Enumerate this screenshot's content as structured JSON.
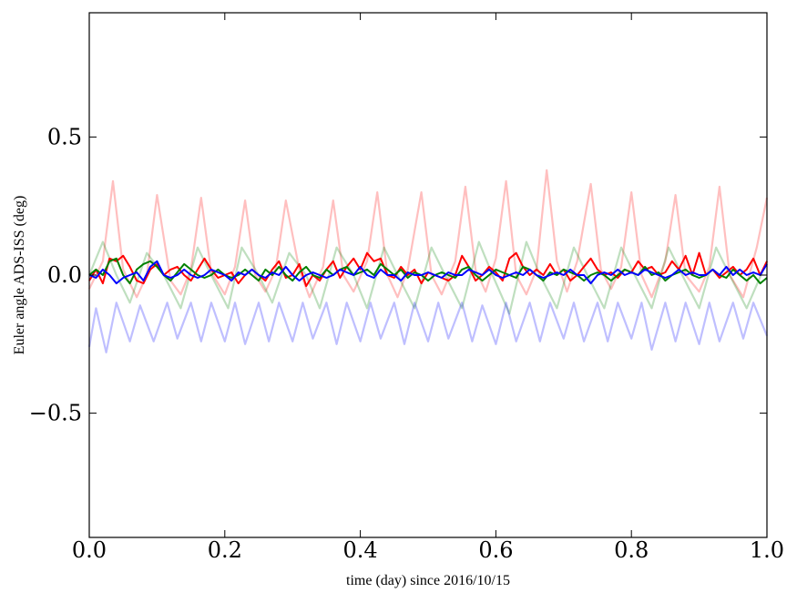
{
  "chart_data": {
    "type": "line",
    "title": "",
    "xlabel": "time (day) since 2016/10/15",
    "ylabel": "Euler angle ADS-ISS (deg)",
    "xlim": [
      0.0,
      1.0
    ],
    "ylim": [
      -0.95,
      0.95
    ],
    "xticks": [
      0.0,
      0.2,
      0.4,
      0.6,
      0.8,
      1.0
    ],
    "xtick_labels": [
      "0.0",
      "0.2",
      "0.4",
      "0.6",
      "0.8",
      "1.0"
    ],
    "yticks": [
      -0.5,
      0.0,
      0.5
    ],
    "ytick_labels": [
      "−0.5",
      "0.0",
      "0.5"
    ],
    "grid": false,
    "legend": "none",
    "series": [
      {
        "color": "#ff0000",
        "alpha": 0.25,
        "x": [
          0.0,
          0.02,
          0.035,
          0.05,
          0.07,
          0.085,
          0.1,
          0.12,
          0.135,
          0.15,
          0.165,
          0.18,
          0.2,
          0.215,
          0.23,
          0.245,
          0.26,
          0.275,
          0.29,
          0.31,
          0.325,
          0.345,
          0.36,
          0.375,
          0.39,
          0.41,
          0.425,
          0.44,
          0.455,
          0.47,
          0.49,
          0.505,
          0.52,
          0.54,
          0.555,
          0.57,
          0.585,
          0.6,
          0.615,
          0.63,
          0.645,
          0.66,
          0.675,
          0.69,
          0.705,
          0.72,
          0.74,
          0.755,
          0.77,
          0.785,
          0.8,
          0.815,
          0.83,
          0.85,
          0.865,
          0.88,
          0.9,
          0.915,
          0.93,
          0.945,
          0.965,
          0.985,
          1.0
        ],
        "y": [
          -0.05,
          0.05,
          0.34,
          0.02,
          -0.08,
          0.0,
          0.29,
          -0.02,
          -0.07,
          0.02,
          0.28,
          0.01,
          -0.07,
          0.03,
          0.27,
          0.0,
          -0.06,
          0.02,
          0.27,
          0.02,
          -0.08,
          0.03,
          0.27,
          0.0,
          -0.06,
          0.05,
          0.3,
          0.0,
          -0.08,
          0.02,
          0.3,
          0.0,
          -0.07,
          0.05,
          0.32,
          0.02,
          -0.06,
          0.06,
          0.34,
          0.0,
          -0.07,
          0.02,
          0.38,
          0.05,
          -0.06,
          0.05,
          0.33,
          0.02,
          -0.05,
          0.03,
          0.3,
          0.0,
          -0.08,
          0.05,
          0.29,
          0.0,
          -0.06,
          0.03,
          0.32,
          0.0,
          -0.08,
          0.1,
          0.28
        ]
      },
      {
        "color": "#008000",
        "alpha": 0.25,
        "x": [
          0.0,
          0.02,
          0.04,
          0.06,
          0.085,
          0.11,
          0.135,
          0.16,
          0.18,
          0.205,
          0.225,
          0.25,
          0.27,
          0.295,
          0.32,
          0.34,
          0.365,
          0.39,
          0.41,
          0.435,
          0.455,
          0.48,
          0.505,
          0.525,
          0.55,
          0.575,
          0.595,
          0.62,
          0.645,
          0.665,
          0.69,
          0.715,
          0.735,
          0.76,
          0.785,
          0.805,
          0.83,
          0.855,
          0.875,
          0.9,
          0.925,
          0.945,
          0.97,
          1.0
        ],
        "y": [
          0.0,
          0.12,
          0.0,
          -0.1,
          0.08,
          0.0,
          -0.12,
          0.1,
          0.0,
          -0.12,
          0.1,
          0.0,
          -0.1,
          0.08,
          0.0,
          -0.12,
          0.1,
          0.0,
          -0.12,
          0.1,
          0.0,
          -0.12,
          0.1,
          0.0,
          -0.12,
          0.12,
          0.0,
          -0.14,
          0.12,
          0.0,
          -0.12,
          0.1,
          0.0,
          -0.12,
          0.1,
          0.0,
          -0.12,
          0.1,
          0.0,
          -0.12,
          0.1,
          0.0,
          -0.12,
          0.05
        ]
      },
      {
        "color": "#0000ff",
        "alpha": 0.25,
        "x": [
          0.0,
          0.01,
          0.025,
          0.04,
          0.06,
          0.075,
          0.095,
          0.115,
          0.13,
          0.15,
          0.165,
          0.18,
          0.2,
          0.215,
          0.23,
          0.25,
          0.265,
          0.28,
          0.3,
          0.315,
          0.33,
          0.35,
          0.365,
          0.38,
          0.4,
          0.415,
          0.43,
          0.45,
          0.465,
          0.48,
          0.5,
          0.515,
          0.53,
          0.55,
          0.565,
          0.58,
          0.6,
          0.615,
          0.63,
          0.65,
          0.665,
          0.68,
          0.7,
          0.715,
          0.73,
          0.75,
          0.765,
          0.78,
          0.8,
          0.815,
          0.83,
          0.85,
          0.865,
          0.88,
          0.9,
          0.915,
          0.93,
          0.95,
          0.965,
          0.98,
          1.0
        ],
        "y": [
          -0.26,
          -0.12,
          -0.28,
          -0.1,
          -0.24,
          -0.11,
          -0.24,
          -0.1,
          -0.23,
          -0.1,
          -0.24,
          -0.1,
          -0.24,
          -0.1,
          -0.25,
          -0.1,
          -0.24,
          -0.1,
          -0.24,
          -0.1,
          -0.23,
          -0.1,
          -0.25,
          -0.1,
          -0.24,
          -0.1,
          -0.23,
          -0.1,
          -0.25,
          -0.1,
          -0.24,
          -0.1,
          -0.23,
          -0.1,
          -0.24,
          -0.11,
          -0.25,
          -0.1,
          -0.24,
          -0.1,
          -0.24,
          -0.1,
          -0.23,
          -0.1,
          -0.24,
          -0.1,
          -0.24,
          -0.1,
          -0.23,
          -0.1,
          -0.27,
          -0.1,
          -0.24,
          -0.1,
          -0.25,
          -0.1,
          -0.24,
          -0.1,
          -0.23,
          -0.1,
          -0.22
        ]
      },
      {
        "color": "#ff0000",
        "alpha": 1,
        "x": [
          0.0,
          0.01,
          0.02,
          0.03,
          0.04,
          0.05,
          0.06,
          0.07,
          0.08,
          0.09,
          0.1,
          0.11,
          0.12,
          0.13,
          0.14,
          0.15,
          0.16,
          0.17,
          0.18,
          0.19,
          0.2,
          0.21,
          0.22,
          0.23,
          0.24,
          0.25,
          0.26,
          0.27,
          0.28,
          0.29,
          0.3,
          0.31,
          0.32,
          0.33,
          0.34,
          0.35,
          0.36,
          0.37,
          0.38,
          0.39,
          0.4,
          0.41,
          0.42,
          0.43,
          0.44,
          0.45,
          0.46,
          0.47,
          0.48,
          0.49,
          0.5,
          0.51,
          0.52,
          0.53,
          0.54,
          0.55,
          0.56,
          0.57,
          0.58,
          0.59,
          0.6,
          0.61,
          0.62,
          0.63,
          0.64,
          0.65,
          0.66,
          0.67,
          0.68,
          0.69,
          0.7,
          0.71,
          0.72,
          0.73,
          0.74,
          0.75,
          0.76,
          0.77,
          0.78,
          0.79,
          0.8,
          0.81,
          0.82,
          0.83,
          0.84,
          0.85,
          0.86,
          0.87,
          0.88,
          0.89,
          0.9,
          0.91,
          0.92,
          0.93,
          0.94,
          0.95,
          0.96,
          0.97,
          0.98,
          0.99,
          1.0
        ],
        "y": [
          -0.02,
          0.02,
          -0.03,
          0.06,
          0.05,
          0.07,
          0.03,
          -0.02,
          -0.03,
          0.02,
          0.04,
          0.0,
          0.02,
          0.03,
          0.0,
          -0.02,
          0.02,
          0.06,
          0.02,
          -0.01,
          0.0,
          0.01,
          -0.03,
          0.0,
          0.02,
          0.0,
          -0.02,
          0.02,
          0.05,
          -0.01,
          0.0,
          0.04,
          -0.04,
          0.0,
          -0.02,
          0.02,
          0.05,
          -0.01,
          0.03,
          0.06,
          0.02,
          0.08,
          0.05,
          0.06,
          0.0,
          -0.01,
          0.03,
          0.0,
          0.02,
          -0.03,
          0.01,
          0.0,
          -0.01,
          -0.02,
          0.0,
          0.07,
          0.03,
          -0.02,
          0.0,
          0.03,
          0.01,
          -0.02,
          0.06,
          0.08,
          0.03,
          0.0,
          0.02,
          0.0,
          0.04,
          0.0,
          0.02,
          -0.02,
          0.0,
          0.03,
          0.06,
          0.02,
          0.0,
          0.01,
          -0.01,
          0.02,
          0.01,
          0.05,
          0.02,
          0.03,
          0.0,
          0.01,
          0.05,
          0.02,
          0.07,
          0.0,
          0.08,
          0.0,
          0.02,
          -0.01,
          0.01,
          0.03,
          0.0,
          0.02,
          0.06,
          0.0,
          0.05
        ]
      },
      {
        "color": "#008000",
        "alpha": 1,
        "x": [
          0.0,
          0.01,
          0.02,
          0.03,
          0.04,
          0.05,
          0.06,
          0.07,
          0.08,
          0.09,
          0.1,
          0.11,
          0.12,
          0.13,
          0.14,
          0.15,
          0.16,
          0.17,
          0.18,
          0.19,
          0.2,
          0.21,
          0.22,
          0.23,
          0.24,
          0.25,
          0.26,
          0.27,
          0.28,
          0.29,
          0.3,
          0.31,
          0.32,
          0.33,
          0.34,
          0.35,
          0.36,
          0.37,
          0.38,
          0.39,
          0.4,
          0.41,
          0.42,
          0.43,
          0.44,
          0.45,
          0.46,
          0.47,
          0.48,
          0.49,
          0.5,
          0.51,
          0.52,
          0.53,
          0.54,
          0.55,
          0.56,
          0.57,
          0.58,
          0.59,
          0.6,
          0.61,
          0.62,
          0.63,
          0.64,
          0.65,
          0.66,
          0.67,
          0.68,
          0.69,
          0.7,
          0.71,
          0.72,
          0.73,
          0.74,
          0.75,
          0.76,
          0.77,
          0.78,
          0.79,
          0.8,
          0.81,
          0.82,
          0.83,
          0.84,
          0.85,
          0.86,
          0.87,
          0.88,
          0.89,
          0.9,
          0.91,
          0.92,
          0.93,
          0.94,
          0.95,
          0.96,
          0.97,
          0.98,
          0.99,
          1.0
        ],
        "y": [
          0.0,
          0.02,
          0.0,
          0.05,
          0.06,
          0.0,
          -0.03,
          0.02,
          0.04,
          0.05,
          0.03,
          0.0,
          -0.02,
          0.01,
          0.04,
          0.02,
          0.0,
          -0.01,
          0.0,
          0.02,
          0.0,
          -0.01,
          0.0,
          0.02,
          0.0,
          -0.02,
          0.02,
          0.0,
          0.03,
          0.0,
          -0.02,
          0.01,
          0.03,
          0.0,
          -0.01,
          0.02,
          0.0,
          0.02,
          0.03,
          0.0,
          0.01,
          0.02,
          0.0,
          0.04,
          0.02,
          0.0,
          0.02,
          -0.01,
          0.01,
          0.0,
          -0.02,
          0.0,
          0.01,
          0.0,
          -0.01,
          0.02,
          0.03,
          0.0,
          -0.02,
          0.0,
          0.02,
          0.01,
          0.0,
          -0.01,
          0.03,
          0.02,
          0.0,
          -0.02,
          0.01,
          0.0,
          0.02,
          0.01,
          0.0,
          -0.02,
          0.0,
          0.01,
          0.0,
          -0.02,
          0.0,
          0.02,
          0.01,
          0.0,
          0.03,
          0.0,
          0.01,
          -0.02,
          0.0,
          0.01,
          0.02,
          0.0,
          -0.01,
          0.0,
          0.02,
          0.0,
          -0.01,
          0.02,
          0.0,
          -0.02,
          0.0,
          -0.03,
          -0.01
        ]
      },
      {
        "color": "#0000ff",
        "alpha": 1,
        "x": [
          0.0,
          0.01,
          0.02,
          0.03,
          0.04,
          0.05,
          0.06,
          0.07,
          0.08,
          0.09,
          0.1,
          0.11,
          0.12,
          0.13,
          0.14,
          0.15,
          0.16,
          0.17,
          0.18,
          0.19,
          0.2,
          0.21,
          0.22,
          0.23,
          0.24,
          0.25,
          0.26,
          0.27,
          0.28,
          0.29,
          0.3,
          0.31,
          0.32,
          0.33,
          0.34,
          0.35,
          0.36,
          0.37,
          0.38,
          0.39,
          0.4,
          0.41,
          0.42,
          0.43,
          0.44,
          0.45,
          0.46,
          0.47,
          0.48,
          0.49,
          0.5,
          0.51,
          0.52,
          0.53,
          0.54,
          0.55,
          0.56,
          0.57,
          0.58,
          0.59,
          0.6,
          0.61,
          0.62,
          0.63,
          0.64,
          0.65,
          0.66,
          0.67,
          0.68,
          0.69,
          0.7,
          0.71,
          0.72,
          0.73,
          0.74,
          0.75,
          0.76,
          0.77,
          0.78,
          0.79,
          0.8,
          0.81,
          0.82,
          0.83,
          0.84,
          0.85,
          0.86,
          0.87,
          0.88,
          0.89,
          0.9,
          0.91,
          0.92,
          0.93,
          0.94,
          0.95,
          0.96,
          0.97,
          0.98,
          0.99,
          1.0
        ],
        "y": [
          0.0,
          -0.01,
          0.02,
          0.0,
          -0.03,
          -0.01,
          0.0,
          0.01,
          -0.02,
          0.03,
          0.05,
          0.0,
          -0.01,
          0.0,
          0.02,
          0.0,
          -0.01,
          0.0,
          0.02,
          0.01,
          0.0,
          -0.02,
          0.01,
          0.0,
          0.02,
          0.0,
          -0.01,
          0.01,
          0.0,
          0.03,
          0.0,
          -0.02,
          0.0,
          0.01,
          0.0,
          -0.01,
          0.0,
          0.02,
          0.01,
          0.0,
          0.03,
          0.0,
          -0.01,
          0.02,
          0.0,
          0.0,
          -0.02,
          0.01,
          0.0,
          0.0,
          0.01,
          0.0,
          -0.01,
          0.01,
          0.0,
          0.0,
          0.02,
          0.01,
          0.0,
          0.02,
          0.0,
          -0.01,
          0.0,
          0.01,
          0.0,
          0.02,
          0.0,
          -0.01,
          0.0,
          0.01,
          0.0,
          0.02,
          0.0,
          0.0,
          -0.03,
          0.0,
          0.01,
          0.0,
          0.02,
          0.0,
          0.01,
          0.0,
          0.02,
          0.01,
          0.0,
          -0.01,
          0.0,
          0.02,
          0.0,
          0.01,
          0.0,
          0.0,
          0.02,
          0.0,
          0.03,
          0.0,
          0.02,
          0.0,
          0.01,
          0.0,
          0.04
        ]
      }
    ]
  }
}
